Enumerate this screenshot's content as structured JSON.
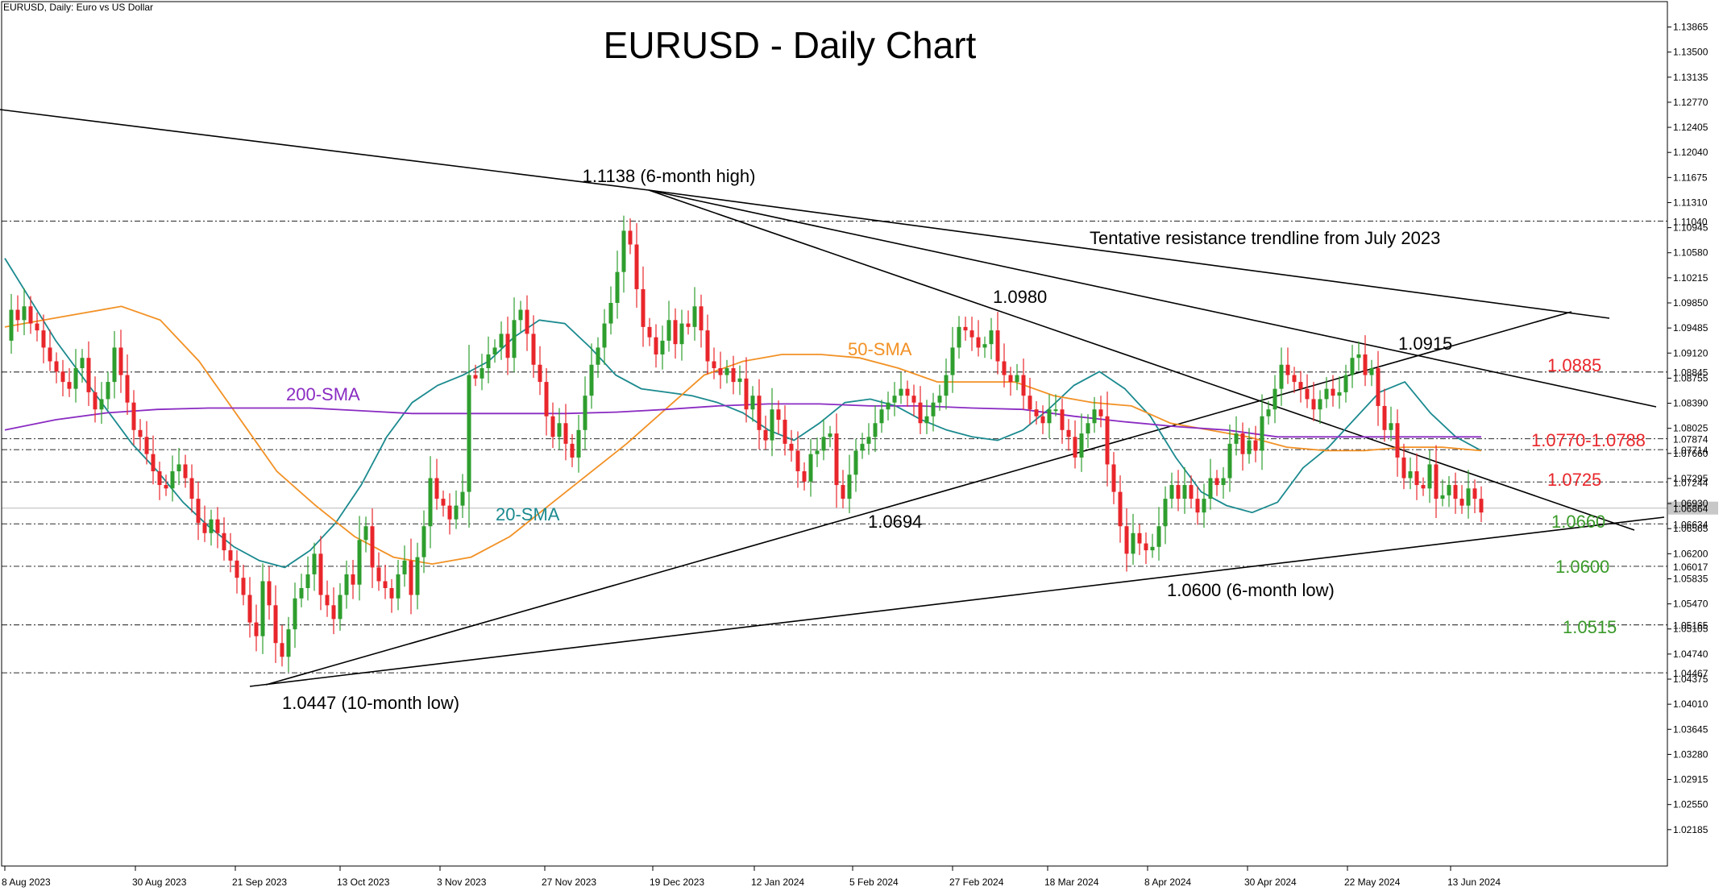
{
  "window": {
    "symbol_line": "EURUSD, Daily:  Euro vs US Dollar"
  },
  "chart_data": {
    "type": "candlestick",
    "title": "EURUSD - Daily Chart",
    "ylim": [
      1.01925,
      1.14
    ],
    "grid": false,
    "price_ticks": [
      "1.13865",
      "1.13500",
      "1.13135",
      "1.12770",
      "1.12405",
      "1.12040",
      "1.11675",
      "1.11310",
      "1.10945",
      "1.10580",
      "1.10215",
      "1.09850",
      "1.09485",
      "1.09120",
      "1.08755",
      "1.08390",
      "1.08025",
      "1.07660",
      "1.07295",
      "1.06930",
      "1.06565",
      "1.06200",
      "1.05835",
      "1.05470",
      "1.05105",
      "1.04740",
      "1.04375",
      "1.04010",
      "1.03645",
      "1.03280",
      "1.02915",
      "1.02550",
      "1.02185"
    ],
    "x_ticks": [
      {
        "label": "8 Aug 2023",
        "i": 0
      },
      {
        "label": "30 Aug 2023",
        "i": 16
      },
      {
        "label": "21 Sep 2023",
        "i": 32
      },
      {
        "label": "13 Oct 2023",
        "i": 48
      },
      {
        "label": "3 Nov 2023",
        "i": 63
      },
      {
        "label": "27 Nov 2023",
        "i": 79
      },
      {
        "label": "19 Dec 2023",
        "i": 95
      },
      {
        "label": "12 Jan 2024",
        "i": 111
      },
      {
        "label": "5 Feb 2024",
        "i": 127
      },
      {
        "label": "27 Feb 2024",
        "i": 143
      },
      {
        "label": "18 Mar 2024",
        "i": 158
      },
      {
        "label": "8 Apr 2024",
        "i": 173
      },
      {
        "label": "30 Apr 2024",
        "i": 189
      },
      {
        "label": "22 May 2024",
        "i": 205
      },
      {
        "label": "13 Jun 2024",
        "i": 220
      }
    ],
    "closes": [
      1.093,
      1.0975,
      1.096,
      1.098,
      1.0955,
      1.0945,
      1.092,
      1.09,
      1.0885,
      1.087,
      1.086,
      1.089,
      1.0905,
      1.0855,
      1.083,
      1.0845,
      1.087,
      1.092,
      1.088,
      1.084,
      1.08,
      1.079,
      1.0765,
      1.074,
      1.072,
      1.0715,
      1.074,
      1.075,
      1.073,
      1.07,
      1.0665,
      1.065,
      1.067,
      1.065,
      1.0625,
      1.061,
      1.0585,
      1.056,
      1.052,
      1.05,
      1.058,
      1.0545,
      1.049,
      1.047,
      1.051,
      1.0555,
      1.057,
      1.059,
      1.062,
      1.056,
      1.0545,
      1.0525,
      1.056,
      1.059,
      1.0575,
      1.064,
      1.066,
      1.06,
      1.058,
      1.057,
      1.0555,
      1.059,
      1.061,
      1.056,
      1.0615,
      1.066,
      1.073,
      1.07,
      1.069,
      1.067,
      1.069,
      1.071,
      1.088,
      1.0875,
      1.089,
      1.091,
      1.092,
      1.094,
      1.0905,
      1.096,
      1.0975,
      1.094,
      1.0895,
      1.087,
      1.082,
      1.079,
      1.081,
      1.078,
      1.076,
      1.08,
      1.085,
      1.0895,
      1.092,
      1.0955,
      1.0985,
      1.103,
      1.109,
      1.107,
      1.1005,
      1.095,
      1.0935,
      1.091,
      1.093,
      1.096,
      1.0925,
      1.0955,
      1.095,
      1.098,
      1.0945,
      1.09,
      1.089,
      1.088,
      1.089,
      1.087,
      1.0875,
      1.083,
      1.085,
      1.08,
      1.0785,
      1.083,
      1.0815,
      1.078,
      1.077,
      1.074,
      1.0725,
      1.0765,
      1.077,
      1.079,
      1.0795,
      1.072,
      1.07,
      1.0735,
      1.077,
      1.078,
      1.079,
      1.081,
      1.083,
      1.084,
      1.085,
      1.086,
      1.085,
      1.084,
      1.081,
      1.082,
      1.084,
      1.085,
      1.088,
      1.092,
      1.095,
      1.0945,
      1.0935,
      1.092,
      1.0925,
      1.0945,
      1.09,
      1.088,
      1.087,
      1.088,
      1.085,
      1.083,
      1.082,
      1.081,
      1.083,
      1.083,
      1.08,
      1.079,
      1.076,
      1.0795,
      1.081,
      1.083,
      1.082,
      1.075,
      1.071,
      1.066,
      1.062,
      1.065,
      1.0635,
      1.0625,
      1.063,
      1.066,
      1.07,
      1.072,
      1.07,
      1.072,
      1.07,
      1.068,
      1.07,
      1.073,
      1.072,
      1.073,
      1.078,
      1.0795,
      1.0765,
      1.0785,
      1.077,
      1.082,
      1.083,
      1.086,
      1.0895,
      1.088,
      1.087,
      1.086,
      1.0845,
      1.083,
      1.0845,
      1.086,
      1.085,
      1.0855,
      1.088,
      1.0905,
      1.091,
      1.088,
      1.089,
      1.0835,
      1.08,
      1.081,
      1.076,
      1.073,
      1.074,
      1.072,
      1.0715,
      1.075,
      1.07,
      1.0705,
      1.072,
      1.07,
      1.069,
      1.0715,
      1.07,
      1.068
    ],
    "series": [
      {
        "name": "20-SMA",
        "color": "#1b8a8f",
        "values": [
          1.105,
          1.099,
          1.093,
          1.088,
          1.083,
          1.078,
          1.074,
          1.0695,
          1.066,
          1.063,
          1.061,
          1.06,
          1.0625,
          1.0665,
          1.072,
          1.079,
          1.084,
          1.0865,
          1.088,
          1.09,
          1.0935,
          1.096,
          1.0955,
          1.092,
          1.088,
          1.086,
          1.0855,
          1.085,
          1.084,
          1.0825,
          1.08,
          1.0785,
          1.081,
          1.084,
          1.0845,
          1.0835,
          1.0815,
          1.08,
          1.079,
          1.0785,
          1.08,
          1.083,
          1.0865,
          1.0885,
          1.086,
          1.082,
          1.076,
          1.071,
          1.069,
          1.068,
          1.0695,
          1.0745,
          1.0775,
          1.0815,
          1.0855,
          1.087,
          1.0825,
          1.079,
          1.077
        ]
      },
      {
        "name": "50-SMA",
        "color": "#f29125",
        "values": [
          1.095,
          1.096,
          1.097,
          1.098,
          1.096,
          1.09,
          1.082,
          1.074,
          1.069,
          1.0645,
          1.0615,
          1.0605,
          1.0615,
          1.0645,
          1.069,
          1.0735,
          1.078,
          1.083,
          1.088,
          1.09,
          1.091,
          1.091,
          1.0905,
          1.089,
          1.087,
          1.087,
          1.087,
          1.085,
          1.084,
          1.0835,
          1.081,
          1.08,
          1.079,
          1.0775,
          1.077,
          1.077,
          1.0775,
          1.0775,
          1.077
        ]
      },
      {
        "name": "200-SMA",
        "color": "#8a2bc2",
        "values": [
          1.08,
          1.0815,
          1.0825,
          1.083,
          1.0832,
          1.0832,
          1.0832,
          1.0828,
          1.0824,
          1.0824,
          1.0824,
          1.0824,
          1.0826,
          1.083,
          1.0835,
          1.0838,
          1.0838,
          1.0835,
          1.0835,
          1.0832,
          1.083,
          1.082,
          1.0812,
          1.0805,
          1.08,
          1.079,
          1.079,
          1.079,
          1.079,
          1.079
        ]
      }
    ],
    "annotations": [
      {
        "text": "1.1138 (6-month high)",
        "color": "#000000"
      },
      {
        "text": "Tentative resistance trendline from July 2023",
        "color": "#000000"
      },
      {
        "text": "1.0980",
        "color": "#000000"
      },
      {
        "text": "50-SMA",
        "color": "#f29125"
      },
      {
        "text": "1.0915",
        "color": "#000000"
      },
      {
        "text": "1.0885",
        "color": "#e8262b"
      },
      {
        "text": "200-SMA",
        "color": "#8a2bc2"
      },
      {
        "text": "1.0770-1.0788",
        "color": "#e8262b"
      },
      {
        "text": "1.0725",
        "color": "#e8262b"
      },
      {
        "text": "20-SMA",
        "color": "#1b8a8f"
      },
      {
        "text": "1.0694",
        "color": "#000000"
      },
      {
        "text": "1.0660",
        "color": "#3a9a2a"
      },
      {
        "text": "1.0600",
        "color": "#3a9a2a"
      },
      {
        "text": "1.0600 (6-month low)",
        "color": "#000000"
      },
      {
        "text": "1.0515",
        "color": "#3a9a2a"
      },
      {
        "text": "1.0447 (10-month low)",
        "color": "#000000"
      }
    ],
    "levels": [
      {
        "value": 1.1104,
        "label": "1.11040"
      },
      {
        "value": 1.08845,
        "label": "1.08845"
      },
      {
        "value": 1.07874,
        "label": "1.07874"
      },
      {
        "value": 1.07714,
        "label": "1.07714"
      },
      {
        "value": 1.07244,
        "label": "1.07244"
      },
      {
        "value": 1.06634,
        "label": "1.06634"
      },
      {
        "value": 1.06017,
        "label": "1.06017"
      },
      {
        "value": 1.05165,
        "label": "1.05165"
      },
      {
        "value": 1.04467,
        "label": "1.04467"
      }
    ],
    "current_price": {
      "value": 1.06864,
      "label": "1.06864"
    },
    "colors": {
      "up": "#2e9e2e",
      "down": "#e8262b",
      "axis": "#000000",
      "level": "#444444"
    }
  }
}
